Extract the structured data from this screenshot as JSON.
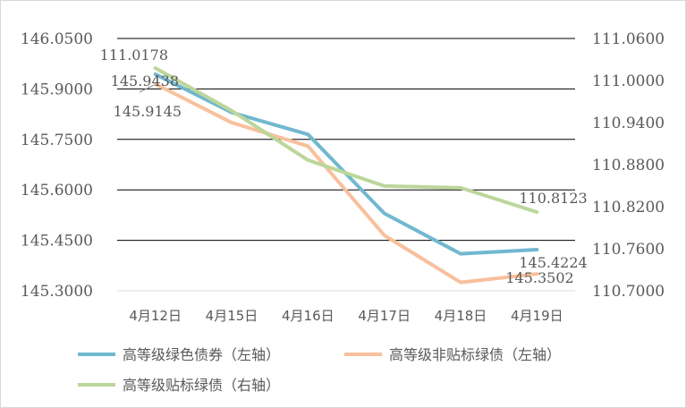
{
  "chart_data": {
    "type": "line",
    "title": "",
    "categories": [
      "4月12日",
      "4月15日",
      "4月16日",
      "4月17日",
      "4月18日",
      "4月19日"
    ],
    "y_left": {
      "min": 145.3,
      "max": 146.05,
      "ticks": [
        "145.3000",
        "145.4500",
        "145.6000",
        "145.7500",
        "145.9000",
        "146.0500"
      ]
    },
    "y_right": {
      "min": 110.7,
      "max": 111.06,
      "ticks": [
        "110.7000",
        "110.7600",
        "110.8200",
        "110.8800",
        "110.9400",
        "111.0000",
        "111.0600"
      ]
    },
    "grid": true,
    "legend_position": "bottom",
    "series": [
      {
        "name": "高等级绿色债券（左轴）",
        "axis": "left",
        "color": "#70b8cf",
        "values": [
          145.9438,
          145.83,
          145.765,
          145.53,
          145.41,
          145.4224
        ],
        "labels": [
          {
            "index": 0,
            "text": "145.9438"
          },
          {
            "index": 5,
            "text": "145.4224"
          }
        ]
      },
      {
        "name": "高等级非贴标绿债（左轴）",
        "axis": "left",
        "color": "#f8c09c",
        "values": [
          145.9145,
          145.8,
          145.73,
          145.465,
          145.325,
          145.3502
        ],
        "labels": [
          {
            "index": 0,
            "text": "145.9145"
          },
          {
            "index": 5,
            "text": "145.3502"
          }
        ]
      },
      {
        "name": "高等级贴标绿债（右轴）",
        "axis": "right",
        "color": "#bcd69b",
        "values": [
          111.0178,
          110.957,
          110.8865,
          110.8495,
          110.847,
          110.8123
        ],
        "labels": [
          {
            "index": 0,
            "text": "111.0178"
          },
          {
            "index": 5,
            "text": "110.8123"
          }
        ]
      }
    ]
  }
}
